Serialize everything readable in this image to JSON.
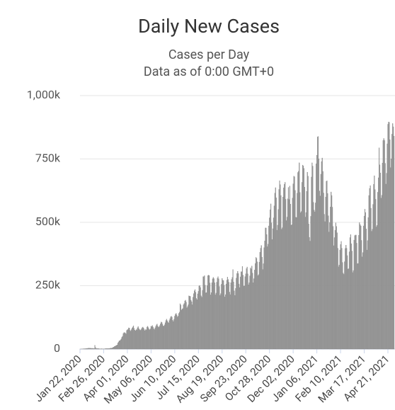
{
  "chart_data": {
    "type": "bar",
    "title": "Daily New Cases",
    "subtitle": [
      "Cases per Day",
      "Data as of 0:00 GMT+0"
    ],
    "color": "#999999",
    "grid": true,
    "ylim": [
      0,
      1000000
    ],
    "yticks": [
      0,
      {
        "value": 250000,
        "label": "250k"
      },
      {
        "value": 500000,
        "label": "500k"
      },
      {
        "value": 750000,
        "label": "750k"
      },
      {
        "value": 1000000,
        "label": "1,000k"
      }
    ],
    "categories": [
      "Jan 22, 2020",
      null,
      null,
      null,
      null,
      null,
      null,
      null,
      null,
      null,
      null,
      null,
      null,
      null,
      null,
      null,
      null,
      null,
      null,
      null,
      null,
      null,
      null,
      null,
      null,
      null,
      null,
      null,
      null,
      null,
      null,
      null,
      null,
      null,
      null,
      "Feb 26, 2020",
      null,
      null,
      null,
      null,
      null,
      null,
      null,
      null,
      null,
      null,
      null,
      null,
      null,
      null,
      null,
      null,
      null,
      null,
      null,
      null,
      null,
      null,
      null,
      null,
      null,
      null,
      null,
      null,
      null,
      null,
      null,
      null,
      null,
      null,
      "Apr 01, 2020",
      null,
      null,
      null,
      null,
      null,
      null,
      null,
      null,
      null,
      null,
      null,
      null,
      null,
      null,
      null,
      null,
      null,
      null,
      null,
      null,
      null,
      null,
      null,
      null,
      null,
      null,
      null,
      null,
      null,
      null,
      null,
      null,
      null,
      null,
      "May 06, 2020",
      null,
      null,
      null,
      null,
      null,
      null,
      null,
      null,
      null,
      null,
      null,
      null,
      null,
      null,
      null,
      null,
      null,
      null,
      null,
      null,
      null,
      null,
      null,
      null,
      null,
      null,
      null,
      null,
      null,
      null,
      null,
      null,
      null,
      null,
      "Jun 10, 2020",
      null,
      null,
      null,
      null,
      null,
      null,
      null,
      null,
      null,
      null,
      null,
      null,
      null,
      null,
      null,
      null,
      null,
      null,
      null,
      null,
      null,
      null,
      null,
      null,
      null,
      null,
      null,
      null,
      null,
      null,
      null,
      null,
      null,
      null,
      "Jul 15, 2020",
      null,
      null,
      null,
      null,
      null,
      null,
      null,
      null,
      null,
      null,
      null,
      null,
      null,
      null,
      null,
      null,
      null,
      null,
      null,
      null,
      null,
      null,
      null,
      null,
      null,
      null,
      null,
      null,
      null,
      null,
      null,
      null,
      null,
      null,
      "Aug 19, 2020",
      null,
      null,
      null,
      null,
      null,
      null,
      null,
      null,
      null,
      null,
      null,
      null,
      null,
      null,
      null,
      null,
      null,
      null,
      null,
      null,
      null,
      null,
      null,
      null,
      null,
      null,
      null,
      null,
      null,
      null,
      null,
      null,
      null,
      null,
      "Sep 23, 2020",
      null,
      null,
      null,
      null,
      null,
      null,
      null,
      null,
      null,
      null,
      null,
      null,
      null,
      null,
      null,
      null,
      null,
      null,
      null,
      null,
      null,
      null,
      null,
      null,
      null,
      null,
      null,
      null,
      null,
      null,
      null,
      null,
      null,
      null,
      "Oct 28, 2020",
      null,
      null,
      null,
      null,
      null,
      null,
      null,
      null,
      null,
      null,
      null,
      null,
      null,
      null,
      null,
      null,
      null,
      null,
      null,
      null,
      null,
      null,
      null,
      null,
      null,
      null,
      null,
      null,
      null,
      null,
      null,
      null,
      null,
      null,
      "Dec 02, 2020",
      null,
      null,
      null,
      null,
      null,
      null,
      null,
      null,
      null,
      null,
      null,
      null,
      null,
      null,
      null,
      null,
      null,
      null,
      null,
      null,
      null,
      null,
      null,
      null,
      null,
      null,
      null,
      null,
      null,
      null,
      null,
      null,
      null,
      null,
      "Jan 06, 2021",
      null,
      null,
      null,
      null,
      null,
      null,
      null,
      null,
      null,
      null,
      null,
      null,
      null,
      null,
      null,
      null,
      null,
      null,
      null,
      null,
      null,
      null,
      null,
      null,
      null,
      null,
      null,
      null,
      null,
      null,
      null,
      null,
      null,
      null,
      "Feb 10, 2021",
      null,
      null,
      null,
      null,
      null,
      null,
      null,
      null,
      null,
      null,
      null,
      null,
      null,
      null,
      null,
      null,
      null,
      null,
      null,
      null,
      null,
      null,
      null,
      null,
      null,
      null,
      null,
      null,
      null,
      null,
      null,
      null,
      null,
      null,
      "Mar 17, 2021",
      null,
      null,
      null,
      null,
      null,
      null,
      null,
      null,
      null,
      null,
      null,
      null,
      null,
      null,
      null,
      null,
      null,
      null,
      null,
      null,
      null,
      null,
      null,
      null,
      null,
      null,
      null,
      null,
      null,
      null,
      null,
      null,
      null,
      null,
      "Apr 21, 2021",
      null,
      null,
      null,
      null,
      null,
      null,
      null,
      null,
      null
    ],
    "values": [
      100,
      150,
      260,
      450,
      690,
      790,
      1700,
      1300,
      1750,
      2100,
      2600,
      2800,
      3200,
      3900,
      3700,
      3150,
      3500,
      2700,
      2900,
      3100,
      2500,
      2000,
      15100,
      6500,
      2600,
      2100,
      2050,
      1900,
      1750,
      900,
      1200,
      1000,
      1600,
      900,
      800,
      1000,
      1100,
      1500,
      1900,
      1800,
      2400,
      1900,
      2600,
      2300,
      2800,
      4000,
      3800,
      4100,
      4600,
      7200,
      7500,
      10800,
      11100,
      13700,
      14600,
      16600,
      24400,
      28100,
      32600,
      32700,
      36500,
      40400,
      47300,
      51300,
      61500,
      64900,
      65500,
      62900,
      60100,
      73800,
      76000,
      78000,
      84000,
      83000,
      74000,
      71000,
      77000,
      83000,
      87000,
      92000,
      82000,
      75000,
      72000,
      77000,
      76000,
      84000,
      89000,
      81000,
      77000,
      74000,
      76000,
      81000,
      85000,
      87000,
      83000,
      77000,
      72000,
      77000,
      76000,
      87000,
      90000,
      85000,
      79000,
      76000,
      80000,
      90000,
      89000,
      93000,
      87000,
      80000,
      77000,
      84000,
      90000,
      96000,
      99000,
      91000,
      86000,
      88000,
      93000,
      100000,
      107000,
      105000,
      98000,
      91000,
      91000,
      96000,
      104000,
      113000,
      118000,
      112000,
      106000,
      103000,
      113000,
      120000,
      127000,
      130000,
      126000,
      114000,
      109000,
      118000,
      130000,
      137000,
      141000,
      135000,
      127000,
      130000,
      141000,
      146000,
      179000,
      174000,
      154000,
      158000,
      160000,
      175000,
      180000,
      190000,
      193000,
      185000,
      163000,
      168000,
      175000,
      210000,
      209000,
      208000,
      193000,
      187000,
      175000,
      205000,
      219000,
      230000,
      235000,
      224000,
      200000,
      195000,
      218000,
      228000,
      249000,
      251000,
      243000,
      210000,
      205000,
      232000,
      286000,
      286000,
      290000,
      252000,
      222000,
      223000,
      251000,
      290000,
      292000,
      290000,
      261000,
      214000,
      223000,
      262000,
      277000,
      283000,
      278000,
      262000,
      214000,
      221000,
      264000,
      280000,
      286000,
      277000,
      247000,
      212000,
      219000,
      256000,
      279000,
      272000,
      270000,
      252000,
      206000,
      215000,
      257000,
      272000,
      284000,
      275000,
      264000,
      225000,
      215000,
      262000,
      275000,
      283000,
      314000,
      265000,
      230000,
      212000,
      240000,
      280000,
      298000,
      307000,
      298000,
      257000,
      243000,
      285000,
      305000,
      305000,
      326000,
      292000,
      249000,
      249000,
      286000,
      297000,
      318000,
      324000,
      297000,
      254000,
      262000,
      289000,
      321000,
      316000,
      328000,
      300000,
      262000,
      278000,
      312000,
      338000,
      362000,
      358000,
      344000,
      290000,
      294000,
      343000,
      382000,
      398000,
      409000,
      363000,
      314000,
      337000,
      400000,
      427000,
      478000,
      478000,
      452000,
      404000,
      414000,
      486000,
      518000,
      550000,
      573000,
      498000,
      432000,
      475000,
      518000,
      565000,
      615000,
      637000,
      597000,
      469000,
      489000,
      551000,
      630000,
      664000,
      649000,
      606000,
      473000,
      479000,
      600000,
      636000,
      650000,
      658000,
      591000,
      507000,
      521000,
      593000,
      638000,
      590000,
      643000,
      572000,
      488000,
      491000,
      596000,
      652000,
      682000,
      680000,
      626000,
      520000,
      519000,
      615000,
      697000,
      702000,
      735000,
      618000,
      538000,
      543000,
      658000,
      726000,
      723000,
      713000,
      639000,
      521000,
      539000,
      622000,
      698000,
      682000,
      494000,
      441000,
      426000,
      524000,
      679000,
      735000,
      722000,
      579000,
      548000,
      541000,
      577000,
      731000,
      765000,
      837000,
      839000,
      751000,
      624000,
      604000,
      690000,
      740000,
      754000,
      701000,
      616000,
      532000,
      503000,
      600000,
      662000,
      664000,
      614000,
      526000,
      462000,
      499000,
      561000,
      620000,
      606000,
      560000,
      484000,
      408000,
      440000,
      469000,
      498000,
      484000,
      459000,
      398000,
      325000,
      332000,
      391000,
      413000,
      425000,
      398000,
      342000,
      300000,
      295000,
      345000,
      397000,
      410000,
      398000,
      369000,
      316000,
      317000,
      384000,
      440000,
      452000,
      416000,
      387000,
      302000,
      310000,
      430000,
      448000,
      450000,
      450000,
      418000,
      337000,
      338000,
      449000,
      499000,
      491000,
      486000,
      429000,
      364000,
      381000,
      486000,
      525000,
      552000,
      539000,
      474000,
      391000,
      428000,
      519000,
      606000,
      634000,
      645000,
      556000,
      465000,
      473000,
      571000,
      650000,
      684000,
      629000,
      591000,
      482000,
      488000,
      619000,
      676000,
      794000,
      727000,
      695000,
      596000,
      607000,
      734000,
      823000,
      831000,
      823000,
      733000,
      651000,
      694000,
      810000,
      887000,
      896000,
      895000,
      826000,
      716000,
      751000,
      848000,
      890000,
      877000,
      840000
    ]
  }
}
